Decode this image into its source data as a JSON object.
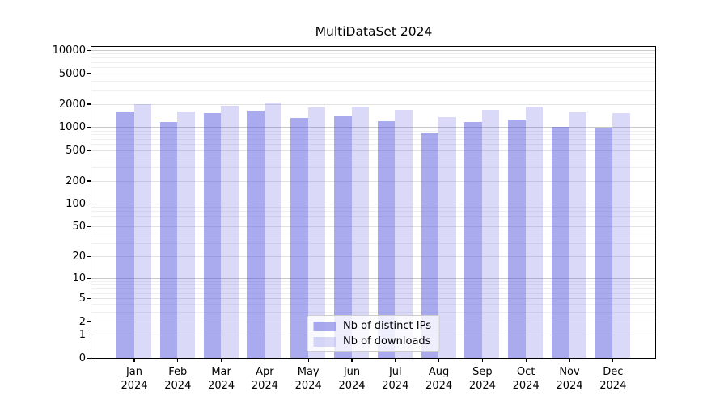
{
  "chart_data": {
    "type": "bar",
    "title": "MultiDataSet 2024",
    "categories": [
      "Jan 2024",
      "Feb 2024",
      "Mar 2024",
      "Apr 2024",
      "May 2024",
      "Jun 2024",
      "Jul 2024",
      "Aug 2024",
      "Sep 2024",
      "Oct 2024",
      "Nov 2024",
      "Dec 2024"
    ],
    "series": [
      {
        "name": "Nb of distinct IPs",
        "color": "rgba(85,85,221,0.5)",
        "values": [
          1600,
          1150,
          1500,
          1620,
          1300,
          1370,
          1180,
          840,
          1150,
          1250,
          1010,
          970
        ]
      },
      {
        "name": "Nb of downloads",
        "color": "rgba(85,85,221,0.22)",
        "values": [
          2000,
          1600,
          1870,
          2080,
          1780,
          1860,
          1670,
          1350,
          1680,
          1850,
          1560,
          1500
        ]
      }
    ],
    "xlabel": "",
    "ylabel": "",
    "y_scale": "symlog (log10 of 1+value)",
    "y_ticks": [
      0,
      1,
      2,
      5,
      10,
      20,
      50,
      100,
      200,
      500,
      1000,
      2000,
      5000,
      10000
    ],
    "ylim": [
      0,
      11000
    ],
    "grid": "horizontal, log minor gridlines",
    "legend_position": "lower center",
    "colors": {
      "bar_base": "#5555dd",
      "spine": "#000000",
      "grid_decade": "#c8c8c8",
      "grid_labeled": "#e2e2e2",
      "grid_minor": "#efefef"
    }
  }
}
